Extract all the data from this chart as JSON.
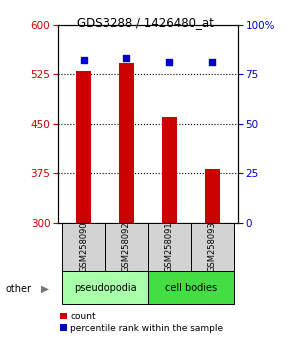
{
  "title": "GDS3288 / 1426480_at",
  "samples": [
    "GSM258090",
    "GSM258092",
    "GSM258091",
    "GSM258093"
  ],
  "count_values": [
    530,
    542,
    460,
    382
  ],
  "percentile_values": [
    82,
    83,
    81,
    81
  ],
  "y_min": 300,
  "y_max": 600,
  "y_ticks": [
    300,
    375,
    450,
    525,
    600
  ],
  "y2_ticks": [
    0,
    25,
    50,
    75,
    100
  ],
  "bar_color": "#cc0000",
  "dot_color": "#0000cc",
  "groups": [
    {
      "label": "pseudopodia",
      "color": "#aaffaa",
      "samples": [
        0,
        1
      ]
    },
    {
      "label": "cell bodies",
      "color": "#44dd44",
      "samples": [
        2,
        3
      ]
    }
  ],
  "other_label": "other",
  "legend_count_label": "count",
  "legend_pct_label": "percentile rank within the sample",
  "bar_bottom": 300,
  "left_tick_color": "#cc0000",
  "right_tick_color": "#0000cc",
  "group_ranges": [
    [
      -0.5,
      1.5
    ],
    [
      1.5,
      3.5
    ]
  ]
}
